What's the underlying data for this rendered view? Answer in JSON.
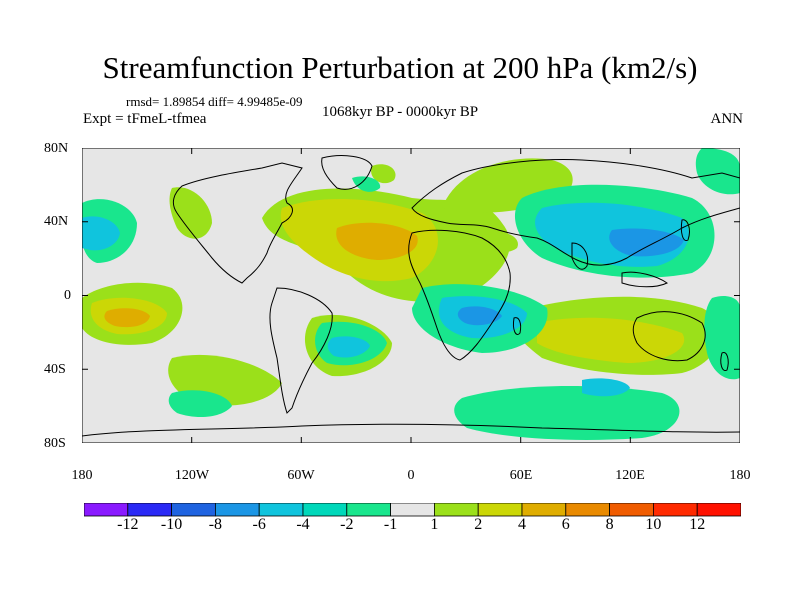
{
  "header": {
    "title": "Streamfunction Perturbation at 200 hPa (km2/s)",
    "stats": "rmsd= 1.89854  diff= 4.99485e-09",
    "experiment": "Expt = tFmeL-tfmea",
    "period": "1068kyr BP - 0000kyr BP",
    "season": "ANN"
  },
  "map": {
    "lat_ticks": [
      "80N",
      "40N",
      "0",
      "40S",
      "80S"
    ],
    "lon_ticks": [
      "180",
      "120W",
      "60W",
      "0",
      "60E",
      "120E",
      "180"
    ],
    "background_color": "#e6e6e6",
    "fields": [
      {
        "region": "north-atlantic-africa",
        "level": 6
      },
      {
        "region": "south-pacific-west",
        "level": 6
      },
      {
        "region": "north-pacific",
        "level": -6
      },
      {
        "region": "indian-ocean",
        "level": -4
      },
      {
        "region": "south-atlantic",
        "level": -4
      },
      {
        "region": "east-pacific",
        "level": -2
      },
      {
        "region": "australia",
        "level": 4
      },
      {
        "region": "southern-ocean-indian",
        "level": -4
      }
    ]
  },
  "colorbar": {
    "labels": [
      "-12",
      "-10",
      "-8",
      "-6",
      "-4",
      "-2",
      "-1",
      "1",
      "2",
      "4",
      "6",
      "8",
      "10",
      "12"
    ],
    "colors": [
      "#8a1aff",
      "#2a29f5",
      "#1f63e0",
      "#1b96e5",
      "#10c4dd",
      "#00d8ba",
      "#19e68d",
      "#e6e6e6",
      "#9be01a",
      "#cbd706",
      "#dfad00",
      "#e98a00",
      "#f05c00",
      "#ff2a00",
      "#ff1100"
    ]
  }
}
